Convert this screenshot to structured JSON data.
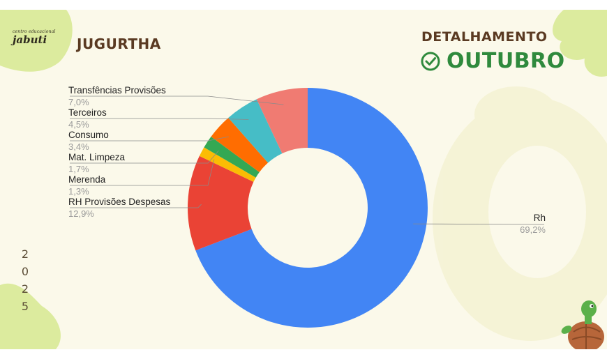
{
  "header": {
    "logo_small": "centro educacional",
    "logo_big": "jabuti",
    "school_name": "JUGURTHA",
    "detail_title": "DETALHAMENTO",
    "month_title": "OUTUBRO",
    "check_icon": "check-circle-icon"
  },
  "year_digits": [
    "2",
    "0",
    "2",
    "5"
  ],
  "colors": {
    "background": "#fbf9ea",
    "accent_green": "#2f8a3d",
    "brown": "#5a3a22",
    "decor_green": "#dceb9e"
  },
  "chart_data": {
    "type": "pie",
    "donut": true,
    "title": "",
    "slices": [
      {
        "label": "Rh",
        "value": 69.2,
        "display": "69,2%",
        "color": "#4285f4"
      },
      {
        "label": "RH Provisões Despesas",
        "value": 12.9,
        "display": "12,9%",
        "color": "#ea4335"
      },
      {
        "label": "Merenda",
        "value": 1.3,
        "display": "1,3%",
        "color": "#fbbc04"
      },
      {
        "label": "Mat. Limpeza",
        "value": 1.7,
        "display": "1,7%",
        "color": "#34a853"
      },
      {
        "label": "Consumo",
        "value": 3.4,
        "display": "3,4%",
        "color": "#ff6d01"
      },
      {
        "label": "Terceiros",
        "value": 4.5,
        "display": "4,5%",
        "color": "#46bdc6"
      },
      {
        "label": "Transfências Provisões",
        "value": 7.0,
        "display": "7,0%",
        "color": "#f07b72"
      }
    ],
    "legend": "none",
    "labels": "outside-with-leader-lines"
  }
}
